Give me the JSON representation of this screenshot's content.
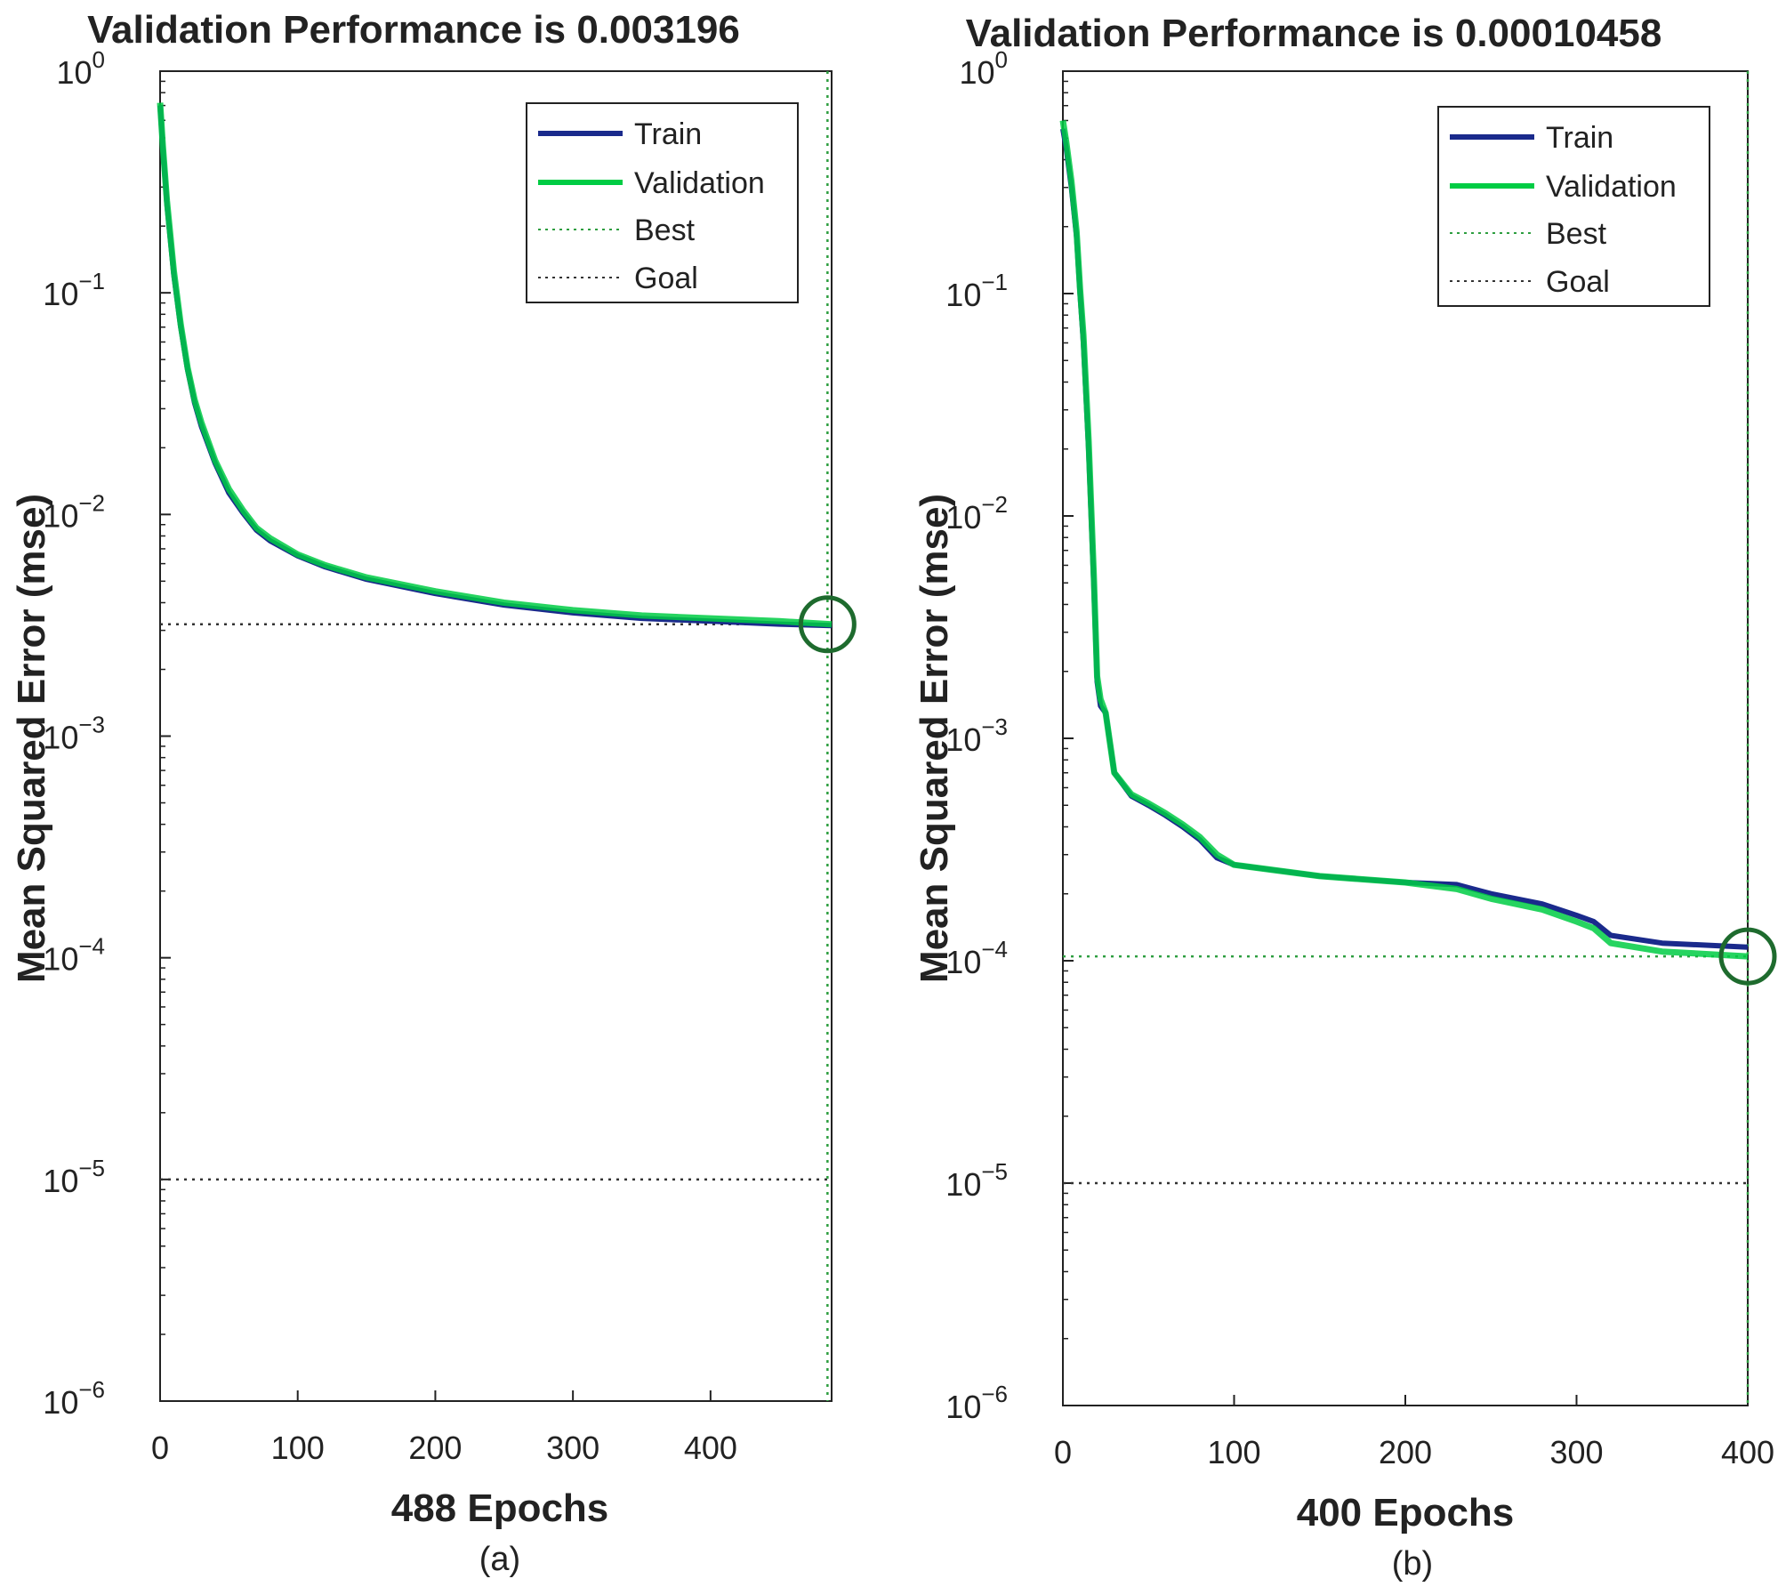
{
  "colors": {
    "train": "#1a2a8c",
    "validation": "#00cc44",
    "best": "#2e9e40",
    "goal": "#333333",
    "axis": "#222222"
  },
  "chart_data": [
    {
      "type": "line",
      "panel_caption": "(a)",
      "title": "Validation Performance is 0.003196",
      "xlabel": "488 Epochs",
      "ylabel": "Mean Squared Error  (mse)",
      "xlim": [
        0,
        488
      ],
      "ylim": [
        1e-06,
        1
      ],
      "yscale": "log",
      "x_ticks": [
        0,
        100,
        200,
        300,
        400
      ],
      "y_ticks": [
        {
          "value": 1,
          "base": "10",
          "exp": "0"
        },
        {
          "value": 0.1,
          "base": "10",
          "exp": "−1"
        },
        {
          "value": 0.01,
          "base": "10",
          "exp": "−2"
        },
        {
          "value": 0.001,
          "base": "10",
          "exp": "−3"
        },
        {
          "value": 0.0001,
          "base": "10",
          "exp": "−4"
        },
        {
          "value": 1e-05,
          "base": "10",
          "exp": "−5"
        },
        {
          "value": 1e-06,
          "base": "10",
          "exp": "−6"
        }
      ],
      "legend": {
        "position": "top-right",
        "labels": [
          "Train",
          "Validation",
          "Best",
          "Goal"
        ]
      },
      "best": {
        "epoch": 485,
        "value": 0.003196
      },
      "goal": 1e-05,
      "series": [
        {
          "name": "Train",
          "x": [
            0,
            2,
            5,
            10,
            15,
            20,
            25,
            30,
            40,
            50,
            60,
            70,
            80,
            100,
            120,
            150,
            200,
            250,
            300,
            350,
            400,
            450,
            488
          ],
          "y": [
            0.7,
            0.45,
            0.25,
            0.12,
            0.07,
            0.045,
            0.032,
            0.025,
            0.017,
            0.0125,
            0.0102,
            0.0085,
            0.0076,
            0.0065,
            0.0058,
            0.0051,
            0.0044,
            0.0039,
            0.0036,
            0.0034,
            0.0033,
            0.0032,
            0.00315
          ]
        },
        {
          "name": "Validation",
          "x": [
            0,
            2,
            5,
            10,
            15,
            20,
            25,
            30,
            40,
            50,
            60,
            70,
            80,
            100,
            120,
            150,
            200,
            250,
            300,
            350,
            400,
            450,
            488
          ],
          "y": [
            0.72,
            0.46,
            0.26,
            0.125,
            0.072,
            0.046,
            0.033,
            0.026,
            0.0175,
            0.013,
            0.0105,
            0.0087,
            0.0078,
            0.0066,
            0.0059,
            0.0052,
            0.0045,
            0.004,
            0.0037,
            0.0035,
            0.0034,
            0.0033,
            0.003196
          ]
        }
      ]
    },
    {
      "type": "line",
      "panel_caption": "(b)",
      "title": "Validation Performance is 0.00010458",
      "xlabel": "400 Epochs",
      "ylabel": "Mean Squared Error  (mse)",
      "xlim": [
        0,
        400
      ],
      "ylim": [
        1e-06,
        1
      ],
      "yscale": "log",
      "x_ticks": [
        0,
        100,
        200,
        300,
        400
      ],
      "y_ticks": [
        {
          "value": 1,
          "base": "10",
          "exp": "0"
        },
        {
          "value": 0.1,
          "base": "10",
          "exp": "−1"
        },
        {
          "value": 0.01,
          "base": "10",
          "exp": "−2"
        },
        {
          "value": 0.001,
          "base": "10",
          "exp": "−3"
        },
        {
          "value": 0.0001,
          "base": "10",
          "exp": "−4"
        },
        {
          "value": 1e-05,
          "base": "10",
          "exp": "−5"
        },
        {
          "value": 1e-06,
          "base": "10",
          "exp": "−6"
        }
      ],
      "legend": {
        "position": "top-right",
        "labels": [
          "Train",
          "Validation",
          "Best",
          "Goal"
        ]
      },
      "best": {
        "epoch": 400,
        "value": 0.00010458
      },
      "goal": 1e-05,
      "series": [
        {
          "name": "Train",
          "x": [
            0,
            2,
            5,
            8,
            10,
            12,
            15,
            18,
            20,
            22,
            25,
            30,
            40,
            50,
            60,
            70,
            80,
            90,
            100,
            150,
            200,
            230,
            250,
            280,
            300,
            310,
            320,
            350,
            400
          ],
          "y": [
            0.55,
            0.45,
            0.3,
            0.18,
            0.1,
            0.06,
            0.02,
            0.005,
            0.0018,
            0.0014,
            0.0013,
            0.0007,
            0.00055,
            0.0005,
            0.00045,
            0.0004,
            0.00035,
            0.00029,
            0.00027,
            0.00024,
            0.000225,
            0.00022,
            0.0002,
            0.00018,
            0.00016,
            0.00015,
            0.00013,
            0.00012,
            0.000115
          ]
        },
        {
          "name": "Validation",
          "x": [
            0,
            2,
            5,
            8,
            10,
            12,
            15,
            18,
            20,
            22,
            25,
            30,
            40,
            50,
            60,
            70,
            80,
            90,
            100,
            150,
            200,
            230,
            250,
            280,
            300,
            310,
            320,
            350,
            400
          ],
          "y": [
            0.6,
            0.48,
            0.32,
            0.19,
            0.105,
            0.065,
            0.022,
            0.0055,
            0.0019,
            0.0015,
            0.0013,
            0.0007,
            0.00056,
            0.00051,
            0.00046,
            0.00041,
            0.00036,
            0.0003,
            0.00027,
            0.00024,
            0.000225,
            0.00021,
            0.00019,
            0.00017,
            0.00015,
            0.00014,
            0.00012,
            0.00011,
            0.00010458
          ]
        }
      ]
    }
  ]
}
